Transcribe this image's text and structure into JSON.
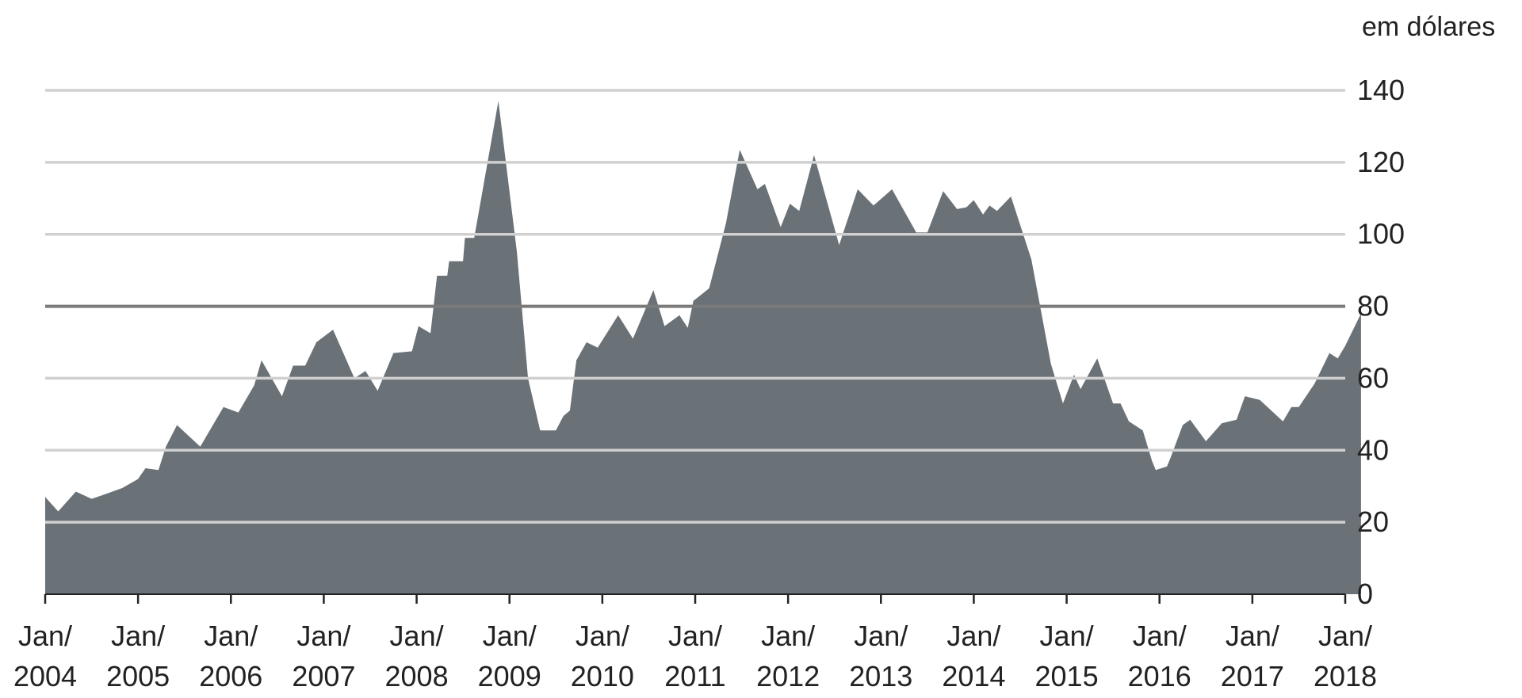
{
  "chart_data": {
    "type": "area",
    "unit_label": "em dólares",
    "ylim": [
      0,
      140
    ],
    "y_ticks": [
      0,
      20,
      40,
      60,
      80,
      100,
      120,
      140
    ],
    "highlight_gridline": 80,
    "xlim": [
      2004.0,
      2018.0
    ],
    "x_ticks": [
      {
        "x": 2004,
        "line1": "Jan/",
        "line2": "2004"
      },
      {
        "x": 2005,
        "line1": "Jan/",
        "line2": "2005"
      },
      {
        "x": 2006,
        "line1": "Jan/",
        "line2": "2006"
      },
      {
        "x": 2007,
        "line1": "Jan/",
        "line2": "2007"
      },
      {
        "x": 2008,
        "line1": "Jan/",
        "line2": "2008"
      },
      {
        "x": 2009,
        "line1": "Jan/",
        "line2": "2009"
      },
      {
        "x": 2010,
        "line1": "Jan/",
        "line2": "2010"
      },
      {
        "x": 2011,
        "line1": "Jan/",
        "line2": "2011"
      },
      {
        "x": 2012,
        "line1": "Jan/",
        "line2": "2012"
      },
      {
        "x": 2013,
        "line1": "Jan/",
        "line2": "2013"
      },
      {
        "x": 2014,
        "line1": "Jan/",
        "line2": "2014"
      },
      {
        "x": 2015,
        "line1": "Jan/",
        "line2": "2015"
      },
      {
        "x": 2016,
        "line1": "Jan/",
        "line2": "2016"
      },
      {
        "x": 2017,
        "line1": "Jan/",
        "line2": "2017"
      },
      {
        "x": 2018,
        "line1": "Jan/",
        "line2": "2018"
      }
    ],
    "grid": true,
    "colors": {
      "area": "#6a7277",
      "gridline": "#d0d0d0",
      "highlight": "#7a7a7a",
      "axis": "#222222"
    },
    "points": [
      [
        2004.0,
        27
      ],
      [
        2004.14,
        23
      ],
      [
        2004.33,
        28.5
      ],
      [
        2004.5,
        26.5
      ],
      [
        2004.67,
        28
      ],
      [
        2004.83,
        29.5
      ],
      [
        2005.0,
        32
      ],
      [
        2005.08,
        35
      ],
      [
        2005.22,
        34.5
      ],
      [
        2005.3,
        41
      ],
      [
        2005.42,
        47
      ],
      [
        2005.67,
        41
      ],
      [
        2005.92,
        52
      ],
      [
        2006.08,
        50.5
      ],
      [
        2006.25,
        58
      ],
      [
        2006.33,
        65
      ],
      [
        2006.55,
        55
      ],
      [
        2006.67,
        63.5
      ],
      [
        2006.8,
        63.5
      ],
      [
        2006.92,
        70
      ],
      [
        2007.1,
        73.5
      ],
      [
        2007.33,
        60
      ],
      [
        2007.45,
        62
      ],
      [
        2007.58,
        56.5
      ],
      [
        2007.75,
        67
      ],
      [
        2007.95,
        67.5
      ],
      [
        2008.02,
        74.5
      ],
      [
        2008.15,
        72.5
      ],
      [
        2008.22,
        88.5
      ],
      [
        2008.33,
        88.5
      ],
      [
        2008.35,
        92.5
      ],
      [
        2008.5,
        92.5
      ],
      [
        2008.52,
        99
      ],
      [
        2008.62,
        99
      ],
      [
        2008.88,
        137
      ],
      [
        2009.08,
        95
      ],
      [
        2009.2,
        60
      ],
      [
        2009.33,
        45.5
      ],
      [
        2009.5,
        45.5
      ],
      [
        2009.58,
        49.5
      ],
      [
        2009.65,
        51
      ],
      [
        2009.72,
        65
      ],
      [
        2009.83,
        70
      ],
      [
        2009.95,
        68.5
      ],
      [
        2010.17,
        77.5
      ],
      [
        2010.33,
        71
      ],
      [
        2010.55,
        84.5
      ],
      [
        2010.67,
        74.5
      ],
      [
        2010.83,
        77.5
      ],
      [
        2010.92,
        74
      ],
      [
        2010.98,
        81.5
      ],
      [
        2011.15,
        85
      ],
      [
        2011.33,
        103
      ],
      [
        2011.48,
        123.5
      ],
      [
        2011.67,
        112.5
      ],
      [
        2011.75,
        114
      ],
      [
        2011.92,
        102
      ],
      [
        2012.02,
        108.5
      ],
      [
        2012.12,
        106.5
      ],
      [
        2012.28,
        122
      ],
      [
        2012.55,
        97
      ],
      [
        2012.75,
        112.5
      ],
      [
        2012.92,
        108
      ],
      [
        2013.12,
        112.5
      ],
      [
        2013.38,
        100.5
      ],
      [
        2013.5,
        100.5
      ],
      [
        2013.67,
        112
      ],
      [
        2013.82,
        107
      ],
      [
        2013.92,
        107.5
      ],
      [
        2014.0,
        109.5
      ],
      [
        2014.1,
        105.5
      ],
      [
        2014.17,
        108
      ],
      [
        2014.25,
        106.5
      ],
      [
        2014.4,
        110.5
      ],
      [
        2014.62,
        93
      ],
      [
        2014.83,
        64
      ],
      [
        2014.96,
        53
      ],
      [
        2015.08,
        61
      ],
      [
        2015.15,
        57
      ],
      [
        2015.33,
        65.5
      ],
      [
        2015.5,
        53
      ],
      [
        2015.58,
        53
      ],
      [
        2015.67,
        48
      ],
      [
        2015.82,
        45.5
      ],
      [
        2015.92,
        37
      ],
      [
        2015.96,
        34.5
      ],
      [
        2016.08,
        35.5
      ],
      [
        2016.12,
        38
      ],
      [
        2016.25,
        47
      ],
      [
        2016.33,
        48.5
      ],
      [
        2016.5,
        42.5
      ],
      [
        2016.67,
        47.5
      ],
      [
        2016.83,
        48.5
      ],
      [
        2016.92,
        55
      ],
      [
        2017.08,
        54
      ],
      [
        2017.33,
        48
      ],
      [
        2017.42,
        52
      ],
      [
        2017.5,
        52
      ],
      [
        2017.67,
        58.5
      ],
      [
        2017.83,
        67
      ],
      [
        2017.92,
        65.5
      ],
      [
        2018.0,
        69
      ],
      [
        2018.17,
        78
      ]
    ]
  }
}
